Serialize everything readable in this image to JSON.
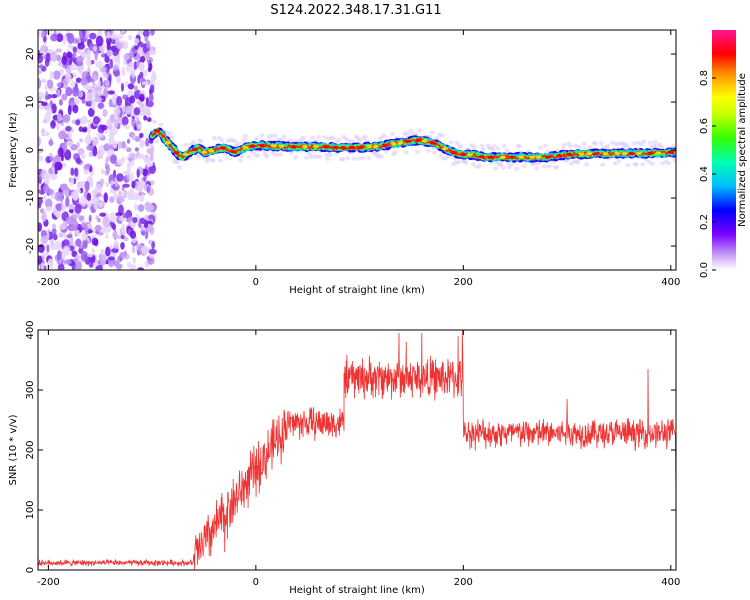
{
  "figure_title": "S124.2022.348.17.31.G11",
  "chart_data": [
    {
      "type": "heatmap",
      "xlabel": "Height of straight line (km)",
      "ylabel": "Frequency (Hz)",
      "xlim": [
        -210,
        405
      ],
      "ylim": [
        -25,
        25
      ],
      "x_ticks": [
        -200,
        0,
        200,
        400
      ],
      "y_ticks": [
        -20,
        -10,
        0,
        10,
        20
      ],
      "noise_region": {
        "x": [
          -210,
          -98
        ],
        "y": [
          -25,
          25
        ]
      },
      "trace": {
        "x": [
          -100,
          -95,
          -90,
          -85,
          -80,
          -75,
          -70,
          -65,
          -60,
          -55,
          -50,
          -40,
          -30,
          -20,
          -10,
          0,
          20,
          40,
          60,
          80,
          100,
          120,
          130,
          140,
          150,
          160,
          170,
          180,
          190,
          200,
          210,
          220,
          240,
          260,
          280,
          300,
          320,
          340,
          360,
          380,
          400
        ],
        "y": [
          3,
          4,
          3,
          1.5,
          0.5,
          -1,
          -1.5,
          -0.5,
          0,
          0.5,
          -0.5,
          0,
          0.5,
          -0.5,
          0.5,
          1,
          0.8,
          0.7,
          0.7,
          0.5,
          0.5,
          0.8,
          1.2,
          1.5,
          2,
          2,
          1.5,
          0.5,
          -0.5,
          -1,
          -1,
          -1.5,
          -1.5,
          -1.5,
          -1.5,
          -1,
          -0.8,
          -0.8,
          -0.7,
          -0.7,
          -0.5
        ]
      },
      "colorbar": {
        "label": "Normalized spectral amplitude",
        "range": [
          0,
          1
        ],
        "ticks": [
          "0.0",
          "0.2",
          "0.4",
          "0.6",
          "0.8"
        ],
        "colors": [
          "#ffffff",
          "#8a2be2",
          "#0000ff",
          "#00ffff",
          "#00ff00",
          "#ffff00",
          "#ff8c00",
          "#ff0000",
          "#ff1493"
        ]
      }
    },
    {
      "type": "line",
      "xlabel": "Height of straight line (km)",
      "ylabel": "SNR (10 * v/v)",
      "xlim": [
        -210,
        405
      ],
      "ylim": [
        0,
        400
      ],
      "x_ticks": [
        -200,
        0,
        200,
        400
      ],
      "y_ticks": [
        0,
        100,
        200,
        300,
        400
      ],
      "line_color": "#ee3333",
      "series": [
        {
          "segments": [
            {
              "x": [
                -210,
                -60
              ],
              "mean": 12,
              "noise": 4
            },
            {
              "x": [
                -60,
                30
              ],
              "start": 20,
              "end": 240,
              "noise": 35
            },
            {
              "x": [
                30,
                85
              ],
              "mean": 245,
              "noise": 22
            },
            {
              "x": [
                85,
                200
              ],
              "mean": 320,
              "noise": 28
            },
            {
              "x": [
                200,
                405
              ],
              "mean": 228,
              "noise": 20
            }
          ],
          "spikes": [
            {
              "x": 100,
              "y": 330
            },
            {
              "x": 138,
              "y": 395
            },
            {
              "x": 145,
              "y": 380
            },
            {
              "x": 160,
              "y": 395
            },
            {
              "x": 195,
              "y": 390
            },
            {
              "x": 199,
              "y": 400
            },
            {
              "x": 300,
              "y": 285
            },
            {
              "x": 378,
              "y": 335
            },
            {
              "x": 405,
              "y": 110
            },
            {
              "x": -30,
              "y": 30
            }
          ]
        }
      ]
    }
  ]
}
